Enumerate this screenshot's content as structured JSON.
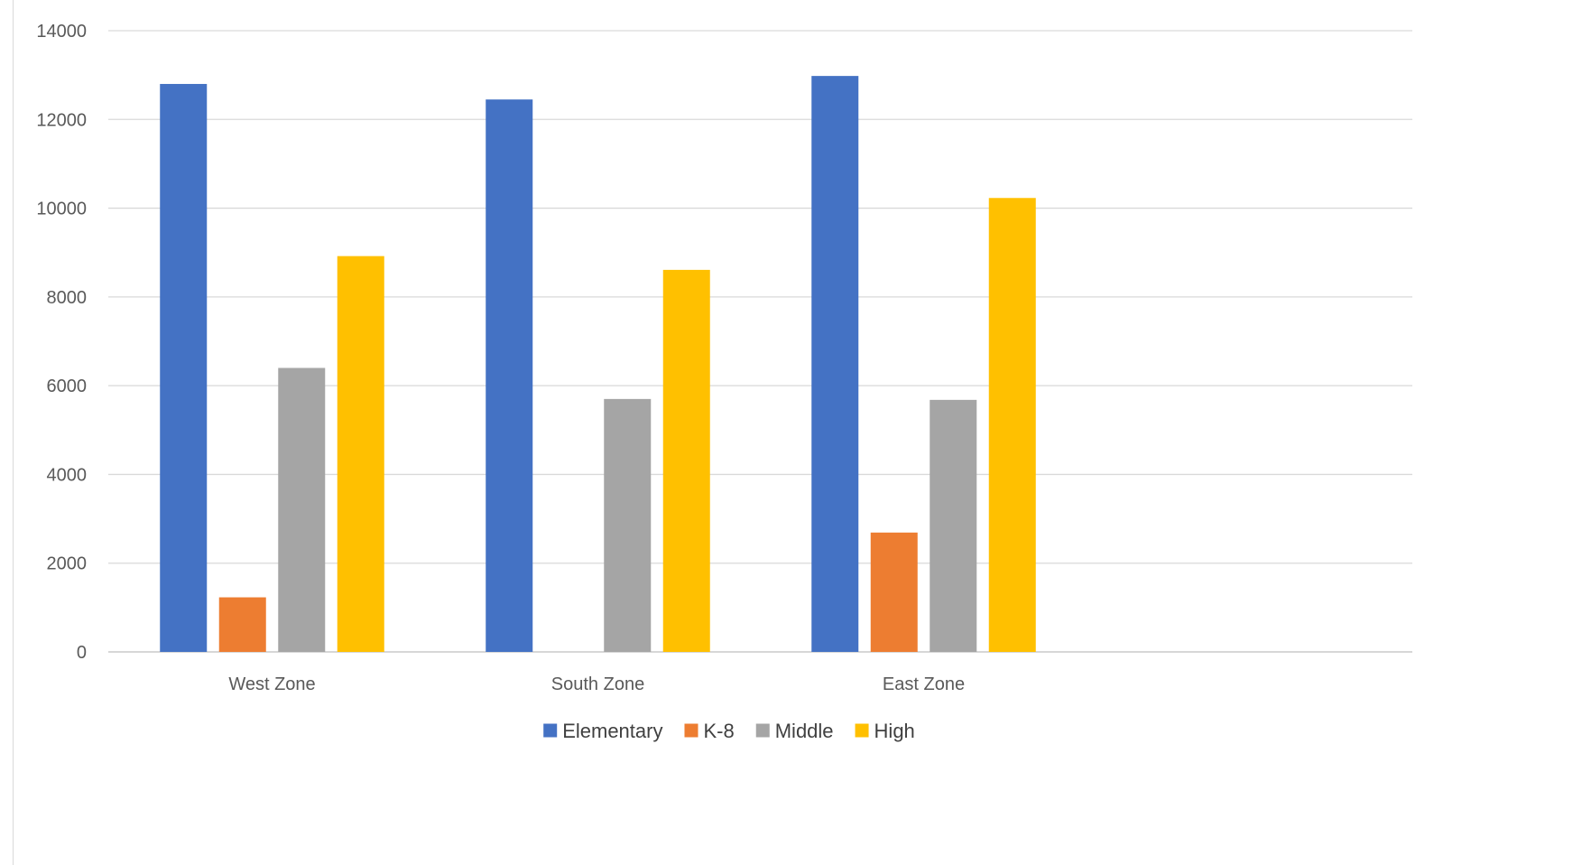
{
  "chart_data": {
    "type": "bar",
    "title": "",
    "categories": [
      "West Zone",
      "South Zone",
      "East Zone"
    ],
    "series": [
      {
        "name": "Elementary",
        "values": [
          12800,
          12450,
          12980
        ],
        "color": "#4472c4"
      },
      {
        "name": "K-8",
        "values": [
          1230,
          0,
          2690
        ],
        "color": "#ed7d31"
      },
      {
        "name": "Middle",
        "values": [
          6400,
          5700,
          5680
        ],
        "color": "#a5a5a5"
      },
      {
        "name": "High",
        "values": [
          8920,
          8610,
          10230
        ],
        "color": "#ffc000"
      }
    ],
    "ylim": [
      0,
      14000
    ],
    "yticks": [
      "0",
      "2000",
      "4000",
      "6000",
      "8000",
      "10000",
      "12000",
      "14000"
    ],
    "grid": true,
    "legend": "bottom",
    "gridColor": "#d9d9d9",
    "axisColor": "#bfbfbf"
  }
}
